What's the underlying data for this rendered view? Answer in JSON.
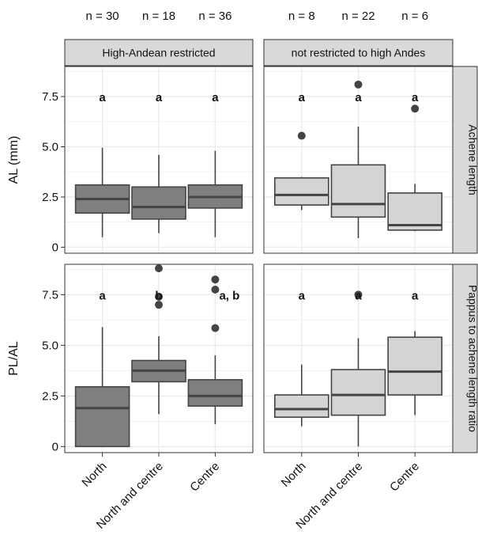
{
  "chart_data": {
    "type": "box",
    "categories": [
      "North",
      "North and centre",
      "Centre"
    ],
    "columns": [
      {
        "label": "High-Andean restricted",
        "n": [
          "n = 30",
          "n = 18",
          "n = 36"
        ],
        "fill": "#7f7f7f"
      },
      {
        "label": "not restricted to high Andes",
        "n": [
          "n = 8",
          "n = 22",
          "n = 6"
        ],
        "fill": "#d4d4d4"
      }
    ],
    "rows": [
      {
        "ylabel": "AL (mm)",
        "strip": "Achene length",
        "ylim": [
          -0.3,
          9
        ],
        "ticks": [
          "0",
          "2.5",
          "5.0",
          "7.5"
        ],
        "tick_values": [
          0,
          2.5,
          5,
          7.5
        ]
      },
      {
        "ylabel": "PL/AL",
        "strip": "Pappus to achene length ratio",
        "ylim": [
          -0.3,
          9
        ],
        "ticks": [
          "0",
          "2.5",
          "5.0",
          "7.5"
        ],
        "tick_values": [
          0,
          2.5,
          5,
          7.5
        ]
      }
    ],
    "sig_y": 7.5,
    "panels": [
      {
        "row": 0,
        "col": 0,
        "boxes": [
          {
            "low": 0.5,
            "q1": 1.7,
            "median": 2.4,
            "q3": 3.1,
            "high": 4.95,
            "outliers": [],
            "sig": "a"
          },
          {
            "low": 0.7,
            "q1": 1.4,
            "median": 2.0,
            "q3": 3.0,
            "high": 4.6,
            "outliers": [],
            "sig": "a"
          },
          {
            "low": 0.5,
            "q1": 1.95,
            "median": 2.5,
            "q3": 3.1,
            "high": 4.8,
            "outliers": [],
            "sig": "a"
          }
        ]
      },
      {
        "row": 0,
        "col": 1,
        "boxes": [
          {
            "low": 1.85,
            "q1": 2.1,
            "median": 2.6,
            "q3": 3.45,
            "high": 3.5,
            "outliers": [
              5.55
            ],
            "sig": "a"
          },
          {
            "low": 0.45,
            "q1": 1.5,
            "median": 2.15,
            "q3": 4.1,
            "high": 6.0,
            "outliers": [
              8.1
            ],
            "sig": "a"
          },
          {
            "low": 0.8,
            "q1": 0.85,
            "median": 1.1,
            "q3": 2.7,
            "high": 3.15,
            "outliers": [
              6.9
            ],
            "sig": "a"
          }
        ]
      },
      {
        "row": 1,
        "col": 0,
        "boxes": [
          {
            "low": 0.0,
            "q1": 0.0,
            "median": 1.9,
            "q3": 2.95,
            "high": 5.9,
            "outliers": [],
            "sig": "a"
          },
          {
            "low": 1.6,
            "q1": 3.2,
            "median": 3.75,
            "q3": 4.25,
            "high": 5.45,
            "outliers": [
              8.8,
              7.4,
              7.0
            ],
            "sig": "b"
          },
          {
            "low": 1.1,
            "q1": 2.0,
            "median": 2.5,
            "q3": 3.3,
            "high": 4.5,
            "outliers": [
              8.25,
              7.75,
              5.85
            ],
            "sig": "a, b"
          }
        ]
      },
      {
        "row": 1,
        "col": 1,
        "boxes": [
          {
            "low": 1.0,
            "q1": 1.45,
            "median": 1.85,
            "q3": 2.55,
            "high": 4.05,
            "outliers": [],
            "sig": "a"
          },
          {
            "low": 0.0,
            "q1": 1.55,
            "median": 2.55,
            "q3": 3.8,
            "high": 5.35,
            "outliers": [
              7.5
            ],
            "sig": "a"
          },
          {
            "low": 1.55,
            "q1": 2.55,
            "median": 3.7,
            "q3": 5.4,
            "high": 5.7,
            "outliers": [],
            "sig": "a"
          }
        ]
      }
    ],
    "grid": true,
    "colors": {
      "panel_bg": "#ffffff",
      "grid": "#ebebeb",
      "strip_bg": "#d9d9d9",
      "border": "#333333",
      "median": "#444444",
      "outlier": "#444444"
    }
  }
}
